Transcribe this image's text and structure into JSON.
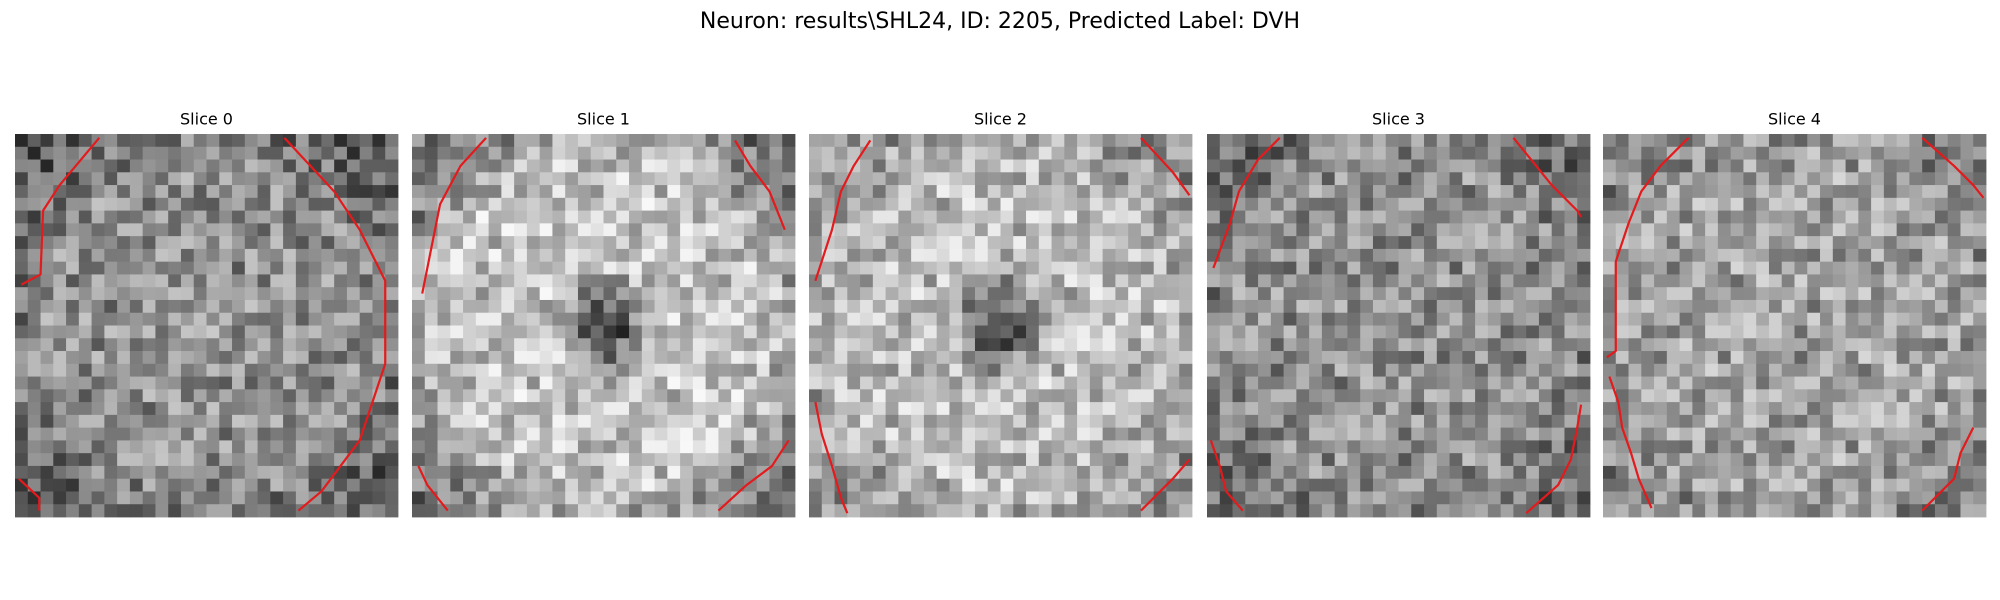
{
  "header": {
    "title": "Neuron: results\\SHL24, ID: 2205, Predicted Label: DVH"
  },
  "slices": [
    {
      "title": "Slice 0"
    },
    {
      "title": "Slice 1"
    },
    {
      "title": "Slice 2"
    },
    {
      "title": "Slice 3"
    },
    {
      "title": "Slice 4"
    }
  ]
}
